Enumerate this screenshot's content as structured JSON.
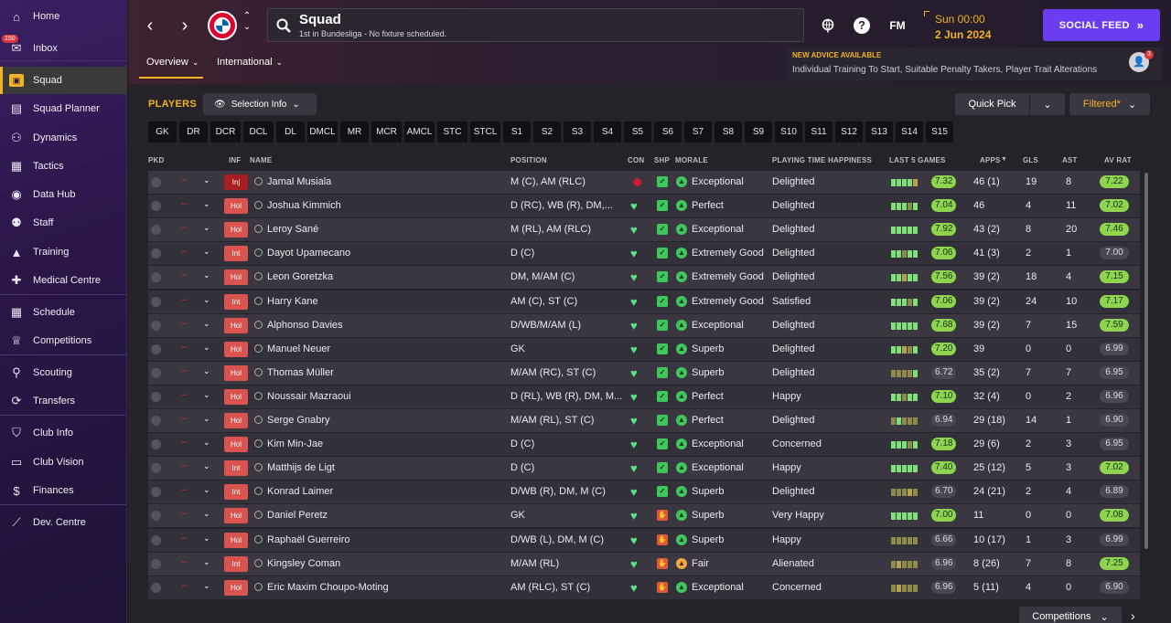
{
  "sidebar": {
    "inbox_badge": "150",
    "items": [
      {
        "label": "Home",
        "icon": "home-icon"
      },
      {
        "label": "Inbox",
        "icon": "inbox-icon"
      },
      {
        "label": "Squad",
        "icon": "squad-icon",
        "active": true
      },
      {
        "label": "Squad Planner",
        "icon": "planner-icon"
      },
      {
        "label": "Dynamics",
        "icon": "dynamics-icon"
      },
      {
        "label": "Tactics",
        "icon": "tactics-icon"
      },
      {
        "label": "Data Hub",
        "icon": "data-hub-icon"
      },
      {
        "label": "Staff",
        "icon": "staff-icon"
      },
      {
        "label": "Training",
        "icon": "training-icon"
      },
      {
        "label": "Medical Centre",
        "icon": "medical-icon"
      },
      {
        "label": "Schedule",
        "icon": "calendar-icon"
      },
      {
        "label": "Competitions",
        "icon": "trophy-icon"
      },
      {
        "label": "Scouting",
        "icon": "scouting-icon"
      },
      {
        "label": "Transfers",
        "icon": "transfers-icon"
      },
      {
        "label": "Club Info",
        "icon": "shield-icon"
      },
      {
        "label": "Club Vision",
        "icon": "briefcase-icon"
      },
      {
        "label": "Finances",
        "icon": "finances-icon"
      },
      {
        "label": "Dev. Centre",
        "icon": "dev-centre-icon"
      }
    ]
  },
  "header": {
    "title": "Squad",
    "subtitle": "1st in Bundesliga - No fixture scheduled.",
    "fm_label": "FM",
    "day_time": "Sun 00:00",
    "date": "2 Jun 2024",
    "social_feed": "SOCIAL FEED",
    "tabs": [
      "Overview",
      "International"
    ],
    "advice_title": "NEW ADVICE AVAILABLE",
    "advice_body": "Individual Training To Start, Suitable Penalty Takers, Player Trait Alterations",
    "advice_count": "3"
  },
  "toolbar": {
    "players_label": "PLAYERS",
    "selection_info": "Selection Info",
    "quick_pick": "Quick Pick",
    "filtered": "Filtered*",
    "positions": [
      "GK",
      "DR",
      "DCR",
      "DCL",
      "DL",
      "DMCL",
      "MR",
      "MCR",
      "AMCL",
      "STC",
      "STCL",
      "S1",
      "S2",
      "S3",
      "S4",
      "S5",
      "S6",
      "S7",
      "S8",
      "S9",
      "S10",
      "S11",
      "S12",
      "S13",
      "S14",
      "S15"
    ]
  },
  "columns": {
    "pkd": "PKD",
    "inf": "INF",
    "name": "NAME",
    "position": "POSITION",
    "con": "CON",
    "shp": "SHP",
    "morale": "MORALE",
    "pth": "PLAYING TIME HAPPINESS",
    "last5": "LAST 5 GAMES",
    "apps": "APPS",
    "gls": "GLS",
    "ast": "AST",
    "avrat": "AV RAT"
  },
  "players": [
    {
      "inf": "Inj",
      "name": "Jamal Musiala",
      "position": "M (C), AM (RLC)",
      "con": "injured",
      "shp": "green",
      "morale": "Exceptional",
      "pth": "Delighted",
      "last5": "7.32",
      "l5grey": false,
      "apps": "46 (1)",
      "gls": "19",
      "ast": "8",
      "av": "7.22",
      "avgrey": false
    },
    {
      "inf": "Hol",
      "name": "Joshua Kimmich",
      "position": "D (RC), WB (R), DM,...",
      "con": "ok",
      "shp": "green",
      "morale": "Perfect",
      "pth": "Delighted",
      "last5": "7.04",
      "l5grey": false,
      "apps": "46",
      "gls": "4",
      "ast": "11",
      "av": "7.02",
      "avgrey": false
    },
    {
      "inf": "Hol",
      "name": "Leroy Sané",
      "position": "M (RL), AM (RLC)",
      "con": "ok",
      "shp": "green",
      "morale": "Exceptional",
      "pth": "Delighted",
      "last5": "7.92",
      "l5grey": false,
      "apps": "43 (2)",
      "gls": "8",
      "ast": "20",
      "av": "7.46",
      "avgrey": false
    },
    {
      "inf": "Int",
      "name": "Dayot Upamecano",
      "position": "D (C)",
      "con": "ok",
      "shp": "green",
      "morale": "Extremely Good",
      "pth": "Delighted",
      "last5": "7.06",
      "l5grey": false,
      "apps": "41 (3)",
      "gls": "2",
      "ast": "1",
      "av": "7.00",
      "avgrey": true
    },
    {
      "inf": "Hol",
      "name": "Leon Goretzka",
      "position": "DM, M/AM (C)",
      "con": "ok",
      "shp": "green",
      "morale": "Extremely Good",
      "pth": "Delighted",
      "last5": "7.56",
      "l5grey": false,
      "apps": "39 (2)",
      "gls": "18",
      "ast": "4",
      "av": "7.15",
      "avgrey": false
    },
    {
      "inf": "Int",
      "name": "Harry Kane",
      "position": "AM (C), ST (C)",
      "con": "ok",
      "shp": "green",
      "morale": "Extremely Good",
      "pth": "Satisfied",
      "last5": "7.06",
      "l5grey": false,
      "apps": "39 (2)",
      "gls": "24",
      "ast": "10",
      "av": "7.17",
      "avgrey": false
    },
    {
      "inf": "Hol",
      "name": "Alphonso Davies",
      "position": "D/WB/M/AM (L)",
      "con": "ok",
      "shp": "green",
      "morale": "Exceptional",
      "pth": "Delighted",
      "last5": "7.68",
      "l5grey": false,
      "apps": "39 (2)",
      "gls": "7",
      "ast": "15",
      "av": "7.59",
      "avgrey": false
    },
    {
      "inf": "Hol",
      "name": "Manuel Neuer",
      "position": "GK",
      "con": "ok",
      "shp": "green",
      "morale": "Superb",
      "pth": "Delighted",
      "last5": "7.20",
      "l5grey": false,
      "apps": "39",
      "gls": "0",
      "ast": "0",
      "av": "6.99",
      "avgrey": true
    },
    {
      "inf": "Hol",
      "name": "Thomas Müller",
      "position": "M/AM (RC), ST (C)",
      "con": "ok",
      "shp": "green",
      "morale": "Superb",
      "pth": "Delighted",
      "last5": "6.72",
      "l5grey": true,
      "apps": "35 (2)",
      "gls": "7",
      "ast": "7",
      "av": "6.95",
      "avgrey": true
    },
    {
      "inf": "Hol",
      "name": "Noussair Mazraoui",
      "position": "D (RL), WB (R), DM, M...",
      "con": "ok",
      "shp": "green",
      "morale": "Perfect",
      "pth": "Happy",
      "last5": "7.10",
      "l5grey": false,
      "apps": "32 (4)",
      "gls": "0",
      "ast": "2",
      "av": "6.96",
      "avgrey": true
    },
    {
      "inf": "Hol",
      "name": "Serge Gnabry",
      "position": "M/AM (RL), ST (C)",
      "con": "ok",
      "shp": "green",
      "morale": "Perfect",
      "pth": "Delighted",
      "last5": "6.94",
      "l5grey": true,
      "apps": "29 (18)",
      "gls": "14",
      "ast": "1",
      "av": "6.90",
      "avgrey": true
    },
    {
      "inf": "Hol",
      "name": "Kim Min-Jae",
      "position": "D (C)",
      "con": "ok",
      "shp": "green",
      "morale": "Exceptional",
      "pth": "Concerned",
      "last5": "7.18",
      "l5grey": false,
      "apps": "29 (6)",
      "gls": "2",
      "ast": "3",
      "av": "6.95",
      "avgrey": true
    },
    {
      "inf": "Int",
      "name": "Matthijs de Ligt",
      "position": "D (C)",
      "con": "ok",
      "shp": "green",
      "morale": "Exceptional",
      "pth": "Happy",
      "last5": "7.40",
      "l5grey": false,
      "apps": "25 (12)",
      "gls": "5",
      "ast": "3",
      "av": "7.02",
      "avgrey": false
    },
    {
      "inf": "Int",
      "name": "Konrad Laimer",
      "position": "D/WB (R), DM, M (C)",
      "con": "ok",
      "shp": "green",
      "morale": "Superb",
      "pth": "Delighted",
      "last5": "6.70",
      "l5grey": true,
      "apps": "24 (21)",
      "gls": "2",
      "ast": "4",
      "av": "6.89",
      "avgrey": true
    },
    {
      "inf": "Hol",
      "name": "Daniel Peretz",
      "position": "GK",
      "con": "ok",
      "shp": "red",
      "morale": "Superb",
      "pth": "Very Happy",
      "last5": "7.00",
      "l5grey": false,
      "apps": "11",
      "gls": "0",
      "ast": "0",
      "av": "7.08",
      "avgrey": false
    },
    {
      "inf": "Hol",
      "name": "Raphaël Guerreiro",
      "position": "D/WB (L), DM, M (C)",
      "con": "ok",
      "shp": "red",
      "morale": "Superb",
      "pth": "Happy",
      "last5": "6.66",
      "l5grey": true,
      "apps": "10 (17)",
      "gls": "1",
      "ast": "3",
      "av": "6.99",
      "avgrey": true
    },
    {
      "inf": "Int",
      "name": "Kingsley Coman",
      "position": "M/AM (RL)",
      "con": "ok",
      "shp": "red",
      "morale": "Fair",
      "pth": "Alienated",
      "last5": "6.96",
      "l5grey": true,
      "apps": "8 (26)",
      "gls": "7",
      "ast": "8",
      "av": "7.25",
      "avgrey": false
    },
    {
      "inf": "Hol",
      "name": "Eric Maxim Choupo-Moting",
      "position": "AM (RLC), ST (C)",
      "con": "ok",
      "shp": "red",
      "morale": "Exceptional",
      "pth": "Concerned",
      "last5": "6.96",
      "l5grey": true,
      "apps": "5 (11)",
      "gls": "4",
      "ast": "0",
      "av": "6.90",
      "avgrey": true
    }
  ],
  "footer": {
    "competitions": "Competitions"
  }
}
